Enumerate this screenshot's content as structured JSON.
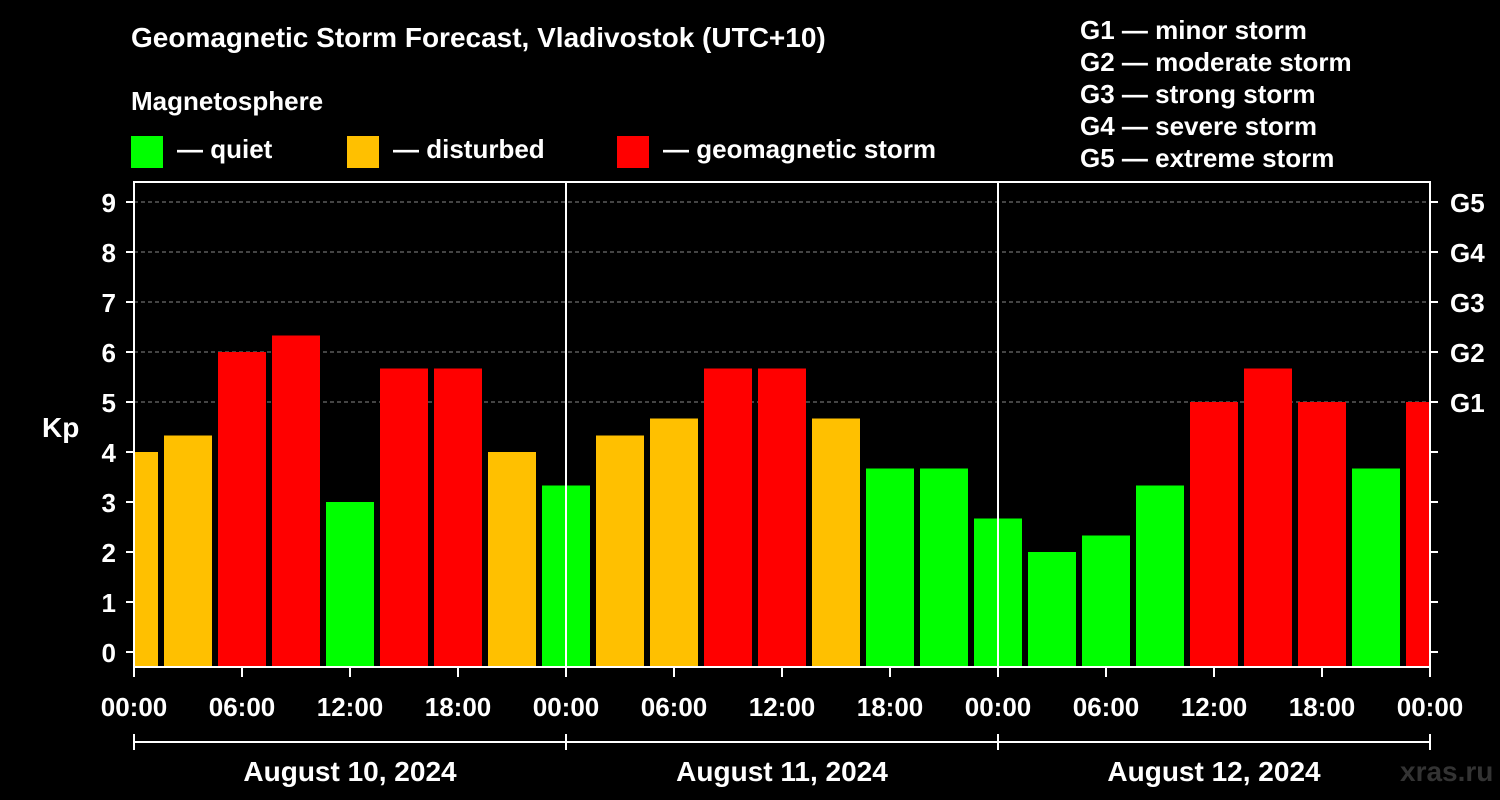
{
  "title": "Geomagnetic Storm Forecast, Vladivostok (UTC+10)",
  "legend": {
    "heading": "Magnetosphere",
    "items": [
      {
        "label": "— quiet",
        "color": "#00ff00"
      },
      {
        "label": "— disturbed",
        "color": "#ffc000"
      },
      {
        "label": "— geomagnetic storm",
        "color": "#ff0000"
      }
    ]
  },
  "storm_levels": [
    "G1 — minor storm",
    "G2 — moderate storm",
    "G3 — strong storm",
    "G4 — severe storm",
    "G5 — extreme storm"
  ],
  "watermark": "xras.ru",
  "chart_data": {
    "type": "bar",
    "ylabel": "Kp",
    "ylim": [
      -0.3,
      9.4
    ],
    "yticks": [
      "0",
      "1",
      "2",
      "3",
      "4",
      "5",
      "6",
      "7",
      "8",
      "9"
    ],
    "right_ticks": [
      {
        "kp": 5,
        "label": "G1"
      },
      {
        "kp": 6,
        "label": "G2"
      },
      {
        "kp": 7,
        "label": "G3"
      },
      {
        "kp": 8,
        "label": "G4"
      },
      {
        "kp": 9,
        "label": "G5"
      }
    ],
    "grid": "dashed horizontal at Kp 5-9",
    "x_tick_labels": [
      "00:00",
      "06:00",
      "12:00",
      "18:00",
      "00:00",
      "06:00",
      "12:00",
      "18:00",
      "00:00",
      "06:00",
      "12:00",
      "18:00",
      "00:00"
    ],
    "days": [
      "August 10, 2024",
      "August 11, 2024",
      "August 12, 2024"
    ],
    "interval_hours": 3,
    "start_offset_hours": -1.5,
    "values": [
      4.0,
      4.33,
      6.0,
      6.33,
      3.0,
      5.67,
      5.67,
      4.0,
      3.33,
      4.33,
      4.67,
      5.67,
      5.67,
      4.67,
      3.67,
      3.67,
      2.67,
      2.0,
      2.33,
      3.33,
      5.0,
      5.67,
      5.0,
      3.67,
      5.0
    ],
    "colors": [
      "#ffc000",
      "#ffc000",
      "#ff0000",
      "#ff0000",
      "#00ff00",
      "#ff0000",
      "#ff0000",
      "#ffc000",
      "#00ff00",
      "#ffc000",
      "#ffc000",
      "#ff0000",
      "#ff0000",
      "#ffc000",
      "#00ff00",
      "#00ff00",
      "#00ff00",
      "#00ff00",
      "#00ff00",
      "#00ff00",
      "#ff0000",
      "#ff0000",
      "#ff0000",
      "#00ff00",
      "#ff0000"
    ]
  }
}
